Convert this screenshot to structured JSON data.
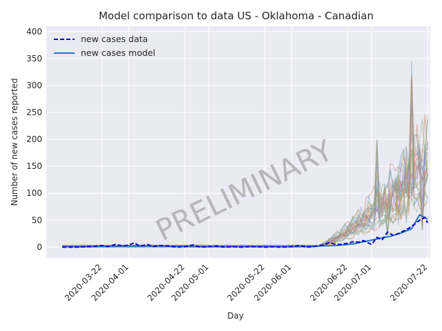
{
  "chart_data": {
    "type": "line",
    "title": "Model comparison to data US - Oklahoma - Canadian",
    "xlabel": "Day",
    "ylabel": "Number of new cases reported",
    "watermark": "PRELIMINARY",
    "x_ticks": [
      "2020-03-22",
      "2020-04-01",
      "2020-04-22",
      "2020-05-01",
      "2020-05-22",
      "2020-06-01",
      "2020-06-22",
      "2020-07-01",
      "2020-07-22"
    ],
    "x_range": [
      "2020-03-07",
      "2020-07-22"
    ],
    "ylim": [
      -20,
      410
    ],
    "y_ticks": [
      0,
      50,
      100,
      150,
      200,
      250,
      300,
      350,
      400
    ],
    "grid": true,
    "legend_position": "top-left",
    "legend": [
      {
        "label": "new cases data",
        "style": "dashed",
        "color": "#0000cc"
      },
      {
        "label": "new cases model",
        "style": "solid",
        "color": "#1f77b4"
      }
    ],
    "series": [
      {
        "name": "new cases data",
        "x": [
          "2020-03-07",
          "2020-03-12",
          "2020-03-17",
          "2020-03-22",
          "2020-03-24",
          "2020-03-27",
          "2020-03-30",
          "2020-04-01",
          "2020-04-03",
          "2020-04-05",
          "2020-04-08",
          "2020-04-10",
          "2020-04-13",
          "2020-04-16",
          "2020-04-19",
          "2020-04-22",
          "2020-04-25",
          "2020-04-28",
          "2020-05-01",
          "2020-05-04",
          "2020-05-07",
          "2020-05-10",
          "2020-05-13",
          "2020-05-16",
          "2020-05-19",
          "2020-05-22",
          "2020-05-25",
          "2020-05-28",
          "2020-06-01",
          "2020-06-04",
          "2020-06-07",
          "2020-06-10",
          "2020-06-13",
          "2020-06-15",
          "2020-06-17",
          "2020-06-19",
          "2020-06-22",
          "2020-06-24",
          "2020-06-26",
          "2020-06-28",
          "2020-07-01",
          "2020-07-03",
          "2020-07-05",
          "2020-07-07",
          "2020-07-09",
          "2020-07-11",
          "2020-07-13",
          "2020-07-15",
          "2020-07-17",
          "2020-07-19",
          "2020-07-21",
          "2020-07-22"
        ],
        "y": [
          0,
          0,
          1,
          3,
          1,
          5,
          2,
          4,
          8,
          2,
          5,
          1,
          3,
          2,
          0,
          1,
          4,
          0,
          1,
          2,
          0,
          1,
          0,
          1,
          1,
          0,
          1,
          0,
          1,
          3,
          0,
          2,
          4,
          8,
          6,
          5,
          7,
          10,
          9,
          12,
          5,
          18,
          14,
          28,
          22,
          25,
          30,
          35,
          42,
          50,
          55,
          45
        ]
      },
      {
        "name": "new cases model",
        "x": [
          "2020-03-07",
          "2020-03-17",
          "2020-03-27",
          "2020-04-06",
          "2020-04-16",
          "2020-04-26",
          "2020-05-06",
          "2020-05-16",
          "2020-05-26",
          "2020-06-05",
          "2020-06-12",
          "2020-06-18",
          "2020-06-24",
          "2020-06-30",
          "2020-07-04",
          "2020-07-08",
          "2020-07-12",
          "2020-07-16",
          "2020-07-19",
          "2020-07-22"
        ],
        "y": [
          1,
          1,
          2,
          2,
          2,
          1,
          1,
          1,
          1,
          1,
          2,
          3,
          6,
          12,
          16,
          20,
          26,
          34,
          60,
          52
        ]
      }
    ]
  }
}
